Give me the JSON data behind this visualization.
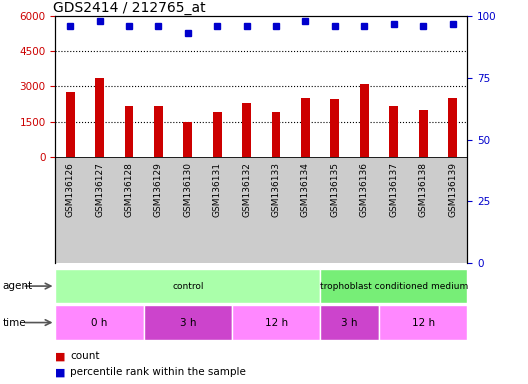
{
  "title": "GDS2414 / 212765_at",
  "samples": [
    "GSM136126",
    "GSM136127",
    "GSM136128",
    "GSM136129",
    "GSM136130",
    "GSM136131",
    "GSM136132",
    "GSM136133",
    "GSM136134",
    "GSM136135",
    "GSM136136",
    "GSM136137",
    "GSM136138",
    "GSM136139"
  ],
  "counts": [
    2750,
    3350,
    2150,
    2150,
    1480,
    1900,
    2300,
    1900,
    2500,
    2450,
    3100,
    2150,
    2000,
    2500
  ],
  "percentiles": [
    96,
    98,
    96,
    96,
    93,
    96,
    96,
    96,
    98,
    96,
    96,
    97,
    96,
    97
  ],
  "bar_color": "#cc0000",
  "dot_color": "#0000cc",
  "ylim_left": [
    0,
    6000
  ],
  "ylim_right": [
    0,
    100
  ],
  "yticks_left": [
    0,
    1500,
    3000,
    4500,
    6000
  ],
  "yticks_right": [
    0,
    25,
    50,
    75,
    100
  ],
  "grid_values": [
    1500,
    3000,
    4500
  ],
  "agent_groups": [
    {
      "label": "control",
      "start": 0,
      "end": 9,
      "color": "#aaffaa"
    },
    {
      "label": "trophoblast conditioned medium",
      "start": 9,
      "end": 14,
      "color": "#77ee77"
    }
  ],
  "time_colors_alt": [
    "#ff88ff",
    "#cc44cc"
  ],
  "time_groups": [
    {
      "label": "0 h",
      "start": 0,
      "end": 3,
      "cidx": 0
    },
    {
      "label": "3 h",
      "start": 3,
      "end": 6,
      "cidx": 1
    },
    {
      "label": "12 h",
      "start": 6,
      "end": 9,
      "cidx": 0
    },
    {
      "label": "3 h",
      "start": 9,
      "end": 11,
      "cidx": 1
    },
    {
      "label": "12 h",
      "start": 11,
      "end": 14,
      "cidx": 0
    }
  ],
  "bar_width": 0.3,
  "xlabel_color": "#cc0000",
  "ylabel_right_color": "#0000cc",
  "bg_xtick": "#cccccc",
  "legend_count_color": "#cc0000",
  "legend_dot_color": "#0000cc"
}
